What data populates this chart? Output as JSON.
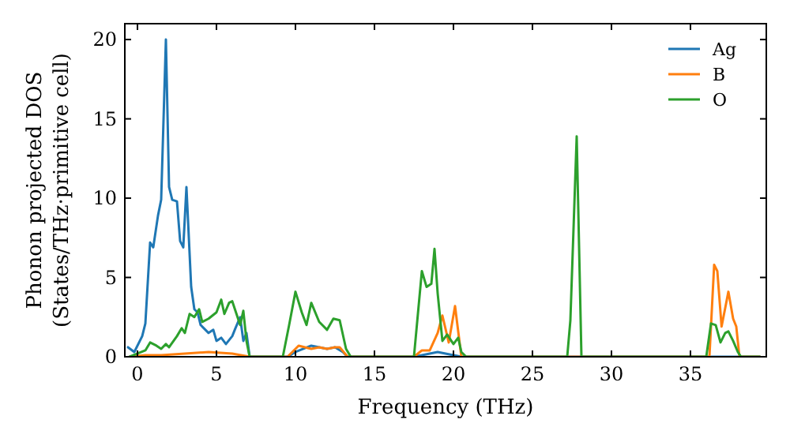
{
  "chart_data": {
    "type": "line",
    "xlabel": "Frequency (THz)",
    "ylabel": "Phonon projected DOS\n(States/THz·primitive cell)",
    "xlim": [
      -0.8,
      39.8
    ],
    "ylim": [
      0,
      21
    ],
    "xticks": [
      0,
      5,
      10,
      15,
      20,
      25,
      30,
      35
    ],
    "yticks": [
      0,
      5,
      10,
      15,
      20
    ],
    "legend": "top right",
    "grid": false,
    "series": [
      {
        "name": "Ag",
        "color": "#1f77b4",
        "x": [
          -0.6,
          -0.2,
          0.3,
          0.5,
          0.8,
          1.0,
          1.3,
          1.5,
          1.8,
          2.0,
          2.2,
          2.5,
          2.7,
          2.9,
          3.1,
          3.4,
          3.6,
          3.8,
          4.0,
          4.5,
          4.8,
          5.0,
          5.3,
          5.6,
          6.0,
          6.2,
          6.5,
          6.7,
          6.9,
          7.1,
          9.5,
          10.0,
          10.5,
          11.0,
          11.5,
          12.0,
          12.5,
          13.0,
          13.3,
          17.5,
          18.0,
          18.5,
          19.0,
          19.5,
          20.0,
          20.5,
          39.4
        ],
        "values": [
          0.6,
          0.3,
          1.3,
          2.1,
          7.2,
          6.9,
          8.9,
          9.9,
          20.0,
          10.7,
          9.9,
          9.8,
          7.3,
          6.9,
          10.7,
          4.4,
          3.0,
          2.8,
          2.0,
          1.5,
          1.7,
          1.0,
          1.2,
          0.8,
          1.3,
          1.8,
          2.5,
          1.0,
          1.5,
          0,
          0,
          0.3,
          0.5,
          0.7,
          0.6,
          0.5,
          0.6,
          0.3,
          0,
          0,
          0.1,
          0.2,
          0.3,
          0.2,
          0.1,
          0,
          0
        ]
      },
      {
        "name": "B",
        "color": "#ff7f0e",
        "x": [
          -0.5,
          0.5,
          1.5,
          3.0,
          4.5,
          6.0,
          7.1,
          9.5,
          10.2,
          10.6,
          11.0,
          11.5,
          12.0,
          12.5,
          12.8,
          13.3,
          17.5,
          18.0,
          18.5,
          19.0,
          19.3,
          19.7,
          20.1,
          20.5,
          36.2,
          36.5,
          36.7,
          36.97,
          37.4,
          37.7,
          37.9,
          38.1,
          39.4
        ],
        "values": [
          0,
          0.1,
          0.1,
          0.2,
          0.3,
          0.2,
          0,
          0,
          0.7,
          0.6,
          0.5,
          0.6,
          0.5,
          0.6,
          0.6,
          0,
          0,
          0.4,
          0.4,
          1.5,
          2.6,
          0.9,
          3.2,
          0,
          0,
          5.8,
          5.4,
          1.9,
          4.1,
          2.4,
          1.9,
          0,
          0
        ]
      },
      {
        "name": "O",
        "color": "#2ca02c",
        "x": [
          -0.5,
          0.5,
          0.8,
          1.2,
          1.5,
          1.8,
          2.0,
          2.5,
          2.8,
          3.0,
          3.3,
          3.6,
          3.9,
          4.1,
          4.5,
          5.0,
          5.3,
          5.5,
          5.8,
          6.0,
          6.3,
          6.5,
          6.7,
          6.9,
          7.1,
          9.2,
          9.6,
          10.0,
          10.4,
          10.7,
          11.0,
          11.5,
          12.0,
          12.4,
          12.8,
          13.2,
          13.5,
          17.5,
          18.0,
          18.3,
          18.6,
          18.8,
          19.0,
          19.3,
          19.6,
          20.0,
          20.3,
          20.5,
          20.8,
          27.2,
          27.4,
          27.8,
          28.1,
          36.0,
          36.3,
          36.6,
          36.9,
          37.2,
          37.4,
          37.7,
          38.0,
          38.2,
          39.4
        ],
        "values": [
          0,
          0.4,
          0.9,
          0.7,
          0.5,
          0.8,
          0.6,
          1.3,
          1.8,
          1.5,
          2.7,
          2.5,
          3.0,
          2.2,
          2.4,
          2.8,
          3.6,
          2.7,
          3.4,
          3.5,
          2.6,
          2.0,
          2.9,
          1.0,
          0,
          0,
          2.0,
          4.1,
          2.8,
          2.0,
          3.4,
          2.2,
          1.7,
          2.4,
          2.3,
          0.5,
          0,
          0,
          5.4,
          4.4,
          4.6,
          6.8,
          4.0,
          1.0,
          1.4,
          0.8,
          1.2,
          0.3,
          0,
          0,
          2.3,
          13.9,
          0,
          0,
          2.1,
          2.0,
          0.9,
          1.5,
          1.6,
          1.0,
          0.3,
          0,
          0
        ]
      }
    ]
  }
}
